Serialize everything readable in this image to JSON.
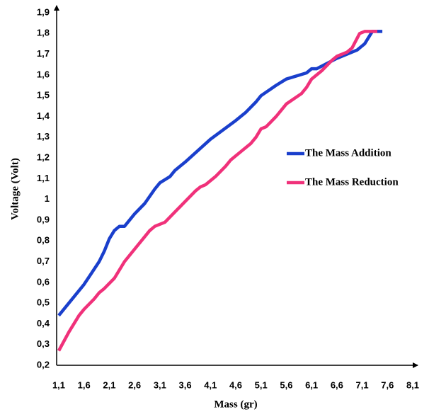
{
  "chart_data": {
    "type": "line",
    "x_label": "Mass (gr)",
    "y_label": "Voltage (Volt)",
    "xlim": [
      1.1,
      8.1
    ],
    "ylim": [
      0.2,
      1.9
    ],
    "xticks": [
      {
        "value": 1.1,
        "label": "1,1"
      },
      {
        "value": 1.6,
        "label": "1,6"
      },
      {
        "value": 2.1,
        "label": "2,1"
      },
      {
        "value": 2.6,
        "label": "2,6"
      },
      {
        "value": 3.1,
        "label": "3,1"
      },
      {
        "value": 3.6,
        "label": "3,6"
      },
      {
        "value": 4.1,
        "label": "4,1"
      },
      {
        "value": 4.6,
        "label": "4,6"
      },
      {
        "value": 5.1,
        "label": "5,1"
      },
      {
        "value": 5.6,
        "label": "5,6"
      },
      {
        "value": 6.1,
        "label": "6,1"
      },
      {
        "value": 6.6,
        "label": "6,6"
      },
      {
        "value": 7.1,
        "label": "7,1"
      },
      {
        "value": 7.6,
        "label": "7,6"
      },
      {
        "value": 8.1,
        "label": "8,1"
      }
    ],
    "yticks": [
      {
        "value": 0.2,
        "label": "0,2"
      },
      {
        "value": 0.3,
        "label": "0,3"
      },
      {
        "value": 0.4,
        "label": "0,4"
      },
      {
        "value": 0.5,
        "label": "0,5"
      },
      {
        "value": 0.6,
        "label": "0,6"
      },
      {
        "value": 0.7,
        "label": "0,7"
      },
      {
        "value": 0.8,
        "label": "0,8"
      },
      {
        "value": 0.9,
        "label": "0,9"
      },
      1,
      {
        "value": 1.1,
        "label": "1,1"
      },
      {
        "value": 1.2,
        "label": "1,2"
      },
      {
        "value": 1.3,
        "label": "1,3"
      },
      {
        "value": 1.4,
        "label": "1,4"
      },
      {
        "value": 1.5,
        "label": "1,5"
      },
      {
        "value": 1.6,
        "label": "1,6"
      },
      {
        "value": 1.7,
        "label": "1,7"
      },
      {
        "value": 1.8,
        "label": "1,8"
      },
      {
        "value": 1.9,
        "label": "1,9"
      }
    ],
    "series": [
      {
        "name": "The Mass Addition",
        "color": "#1a3fcc",
        "x": [
          1.1,
          1.6,
          1.9,
          2.0,
          2.1,
          2.2,
          2.3,
          2.4,
          2.6,
          2.8,
          3.0,
          3.1,
          3.3,
          3.4,
          3.6,
          4.1,
          4.6,
          4.8,
          5.0,
          5.1,
          5.4,
          5.6,
          6.0,
          6.1,
          6.2,
          6.6,
          7.0,
          7.15,
          7.3,
          7.5
        ],
        "values": [
          0.44,
          0.59,
          0.7,
          0.75,
          0.81,
          0.85,
          0.87,
          0.87,
          0.93,
          0.98,
          1.05,
          1.08,
          1.11,
          1.14,
          1.18,
          1.29,
          1.38,
          1.42,
          1.47,
          1.5,
          1.55,
          1.58,
          1.61,
          1.63,
          1.63,
          1.68,
          1.72,
          1.75,
          1.81,
          1.81
        ]
      },
      {
        "name": "The Mass Reduction",
        "color": "#f0317a",
        "x": [
          1.1,
          1.3,
          1.5,
          1.6,
          1.8,
          1.9,
          2.0,
          2.2,
          2.4,
          2.6,
          2.8,
          2.9,
          3.0,
          3.2,
          3.4,
          3.6,
          3.8,
          3.9,
          4.0,
          4.2,
          4.4,
          4.5,
          4.7,
          4.9,
          5.0,
          5.1,
          5.2,
          5.4,
          5.5,
          5.6,
          5.9,
          6.0,
          6.1,
          6.3,
          6.5,
          6.6,
          6.8,
          6.9,
          7.05,
          7.15,
          7.4
        ],
        "values": [
          0.27,
          0.36,
          0.44,
          0.47,
          0.52,
          0.55,
          0.57,
          0.62,
          0.7,
          0.76,
          0.82,
          0.85,
          0.87,
          0.89,
          0.94,
          0.99,
          1.04,
          1.06,
          1.07,
          1.11,
          1.16,
          1.19,
          1.23,
          1.27,
          1.3,
          1.34,
          1.35,
          1.4,
          1.43,
          1.46,
          1.51,
          1.54,
          1.58,
          1.62,
          1.67,
          1.69,
          1.71,
          1.73,
          1.8,
          1.81,
          1.81
        ]
      }
    ]
  }
}
